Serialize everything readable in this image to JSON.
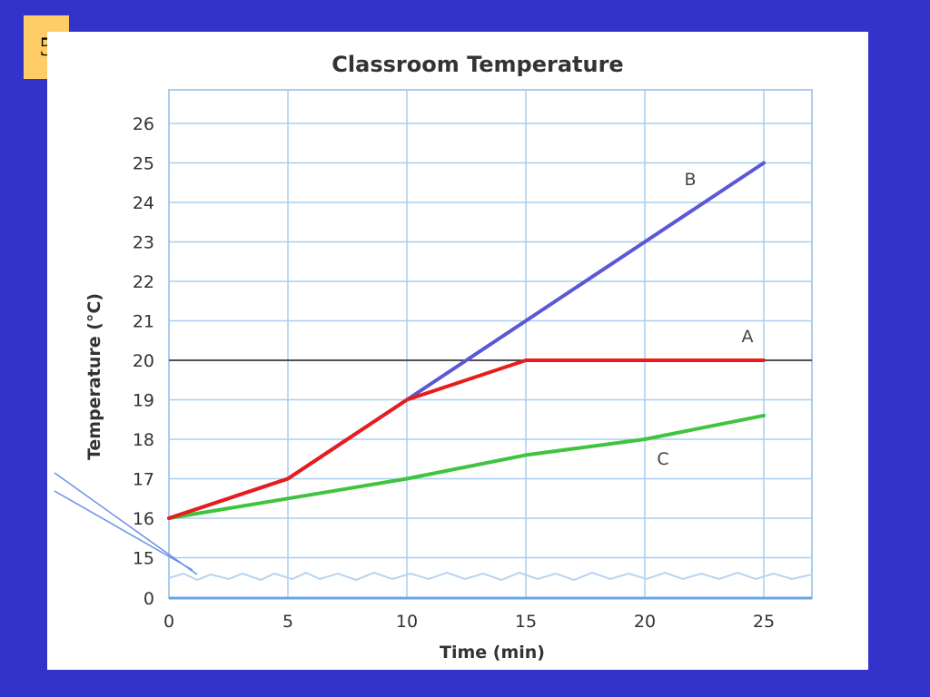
{
  "slide_number": "5",
  "chart_data": {
    "type": "line",
    "title": "Classroom Temperature",
    "xlabel": "Time (min)",
    "ylabel": "Temperature (°C)",
    "x_ticks": [
      "0",
      "5",
      "10",
      "15",
      "20",
      "25"
    ],
    "y_ticks": [
      "0",
      "15",
      "16",
      "17",
      "18",
      "19",
      "20",
      "21",
      "22",
      "23",
      "24",
      "25",
      "26"
    ],
    "xlim": [
      0,
      27
    ],
    "ylim": [
      14.5,
      27
    ],
    "y_axis_break": true,
    "grid": true,
    "reference_line": {
      "y": 20,
      "color": "#222222"
    },
    "series": [
      {
        "name": "A",
        "color": "#e81c1c",
        "x": [
          0,
          5,
          10,
          15,
          20,
          25
        ],
        "y": [
          16,
          17,
          19,
          20,
          20,
          20
        ]
      },
      {
        "name": "B",
        "color": "#5b57d6",
        "x": [
          0,
          5,
          10,
          15,
          20,
          25
        ],
        "y": [
          16,
          17,
          19,
          21,
          23,
          25
        ]
      },
      {
        "name": "C",
        "color": "#3ec43e",
        "x": [
          0,
          5,
          10,
          15,
          20,
          25
        ],
        "y": [
          16,
          16.5,
          17,
          17.6,
          18,
          18.6
        ]
      }
    ]
  }
}
